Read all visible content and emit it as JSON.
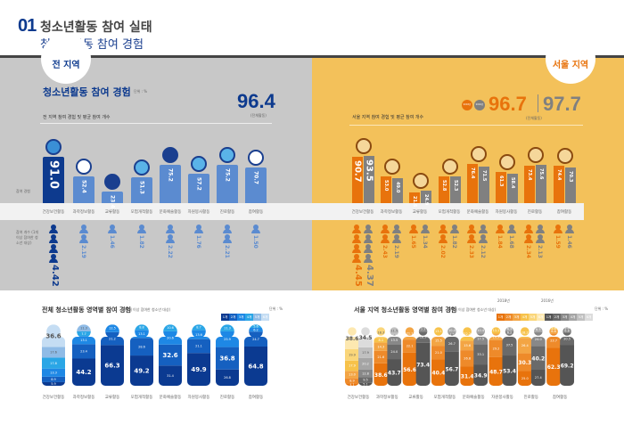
{
  "header": {
    "number": "01",
    "title": "청소년활동 참여 실태",
    "subtitle": "청소년활동 참여 경험"
  },
  "all": {
    "badge": "전 지역",
    "section_title": "청소년활동 참여 경험",
    "unit": "단위 : %",
    "desc": "전 지역 참여 경험 및 평균 참여 개수",
    "total": "96.4",
    "total_label": "(전체활동)",
    "row_label_exp": "참여 경험",
    "row_label_cnt": "참여 개수 (1개 이상 참여한 청소년 대상)",
    "color": "#0d3a8e",
    "bar_color": "#5b8bd0"
  },
  "seoul": {
    "badge": "서울 지역",
    "desc": "서울 지역 참여 경험 및 평균 참여 개수",
    "year_a": "2018년",
    "year_b": "2016년",
    "total_a": "96.7",
    "total_b": "97.7",
    "total_label": "(전체활동)",
    "color_a": "#e8730c",
    "color_b": "#808080"
  },
  "categories": [
    "건강보건활동",
    "과학정보활동",
    "교류활동",
    "모험개척활동",
    "문화예술활동",
    "자원봉사활동",
    "진로활동",
    "참여활동"
  ],
  "icons": [
    "dumbbell-icon",
    "microscope-icon",
    "globe-icon",
    "runner-icon",
    "film-reel-icon",
    "heart-icon",
    "signpost-icon",
    "handshake-icon"
  ],
  "chart_data": [
    {
      "type": "bar",
      "title": "청소년활동 참여 경험 (전 지역)",
      "unit": "%",
      "series": [
        {
          "name": "참여 경험",
          "values": [
            91.0,
            52.4,
            23.4,
            51.3,
            75.2,
            57.2,
            75.2,
            70.7
          ]
        },
        {
          "name": "참여 개수",
          "values": [
            4.42,
            2.19,
            1.46,
            1.82,
            2.22,
            1.76,
            2.21,
            1.5
          ]
        }
      ]
    },
    {
      "type": "bar",
      "title": "서울 지역 참여 경험 및 평균 참여 개수",
      "series": [
        {
          "name": "2018년 참여 경험",
          "values": [
            90.7,
            53.0,
            21.6,
            52.8,
            76.4,
            61.3,
            73.4,
            74.4
          ]
        },
        {
          "name": "2016년 참여 경험",
          "values": [
            93.5,
            49.0,
            24.9,
            52.3,
            71.5,
            58.4,
            75.6,
            70.3
          ]
        },
        {
          "name": "2018년 참여 개수",
          "values": [
            4.45,
            2.43,
            1.65,
            2.02,
            2.33,
            1.84,
            2.34,
            1.59
          ]
        },
        {
          "name": "2016년 참여 개수",
          "values": [
            4.37,
            2.19,
            1.34,
            1.82,
            2.12,
            1.68,
            2.13,
            1.46
          ]
        }
      ]
    },
    {
      "type": "bar",
      "title": "전체 청소년활동 영역별 참여 경험",
      "subtitle": "(1개 이상 참여한 청소년 대상)",
      "unit": "단위 : %",
      "legend": [
        "1개",
        "2개",
        "3개",
        "4개",
        "5개",
        "6개"
      ],
      "stacks": [
        [
          5.9,
          8.9,
          13.3,
          17.8,
          17.6,
          36.6
        ],
        [
          44.2,
          23.4,
          13.1,
          7.7,
          11.3
        ],
        [
          66.3,
          21.2,
          12.5
        ],
        [
          49.2,
          28.6,
          13.1,
          8.8
        ],
        [
          31.4,
          32.6,
          20.6,
          10.6
        ],
        [
          49.9,
          21.1,
          13.6,
          8.7
        ],
        [
          26.8,
          36.8,
          25.9,
          11.3
        ],
        [
          64.8,
          24.7,
          6.2,
          5.6
        ]
      ]
    },
    {
      "type": "bar",
      "title": "서울 지역 청소년활동 영역별 참여 경험",
      "subtitle": "(1개 이상 참여한 청소년 대상)",
      "unit": "단위 : %",
      "legend": [
        "1개",
        "2개",
        "3개",
        "4개",
        "5개",
        "6개"
      ],
      "stacks_a": [
        [
          4.1,
          8.9,
          13.0,
          17.9,
          19.9,
          38.6
        ],
        [
          38.6,
          21.6,
          14.3,
          8.1,
          18.3
        ],
        [
          56.6,
          22.1,
          21.1
        ],
        [
          40.4,
          21.0,
          15.5,
          13.1
        ],
        [
          31.4,
          26.8,
          15.6,
          22.2
        ],
        [
          48.7,
          29.2,
          10.9,
          11.1
        ],
        [
          25.0,
          30.3,
          26.4,
          18.2
        ],
        [
          62.3,
          23.7,
          6.6,
          3.8
        ]
      ],
      "stacks_b": [
        [
          5.1,
          9.5,
          12.8,
          20.2,
          17.9,
          34.5
        ],
        [
          43.7,
          24.0,
          13.5,
          3.3,
          11.5
        ],
        [
          73.4,
          18.9,
          7.7
        ],
        [
          56.7,
          26.7,
          4.2,
          10.4
        ],
        [
          34.9,
          33.1,
          17.5,
          10.4
        ],
        [
          53.4,
          37.5,
          6.2,
          6.3
        ],
        [
          27.4,
          40.2,
          24.0,
          8.5
        ],
        [
          69.2,
          20.5,
          6.8,
          2.6
        ]
      ]
    }
  ]
}
